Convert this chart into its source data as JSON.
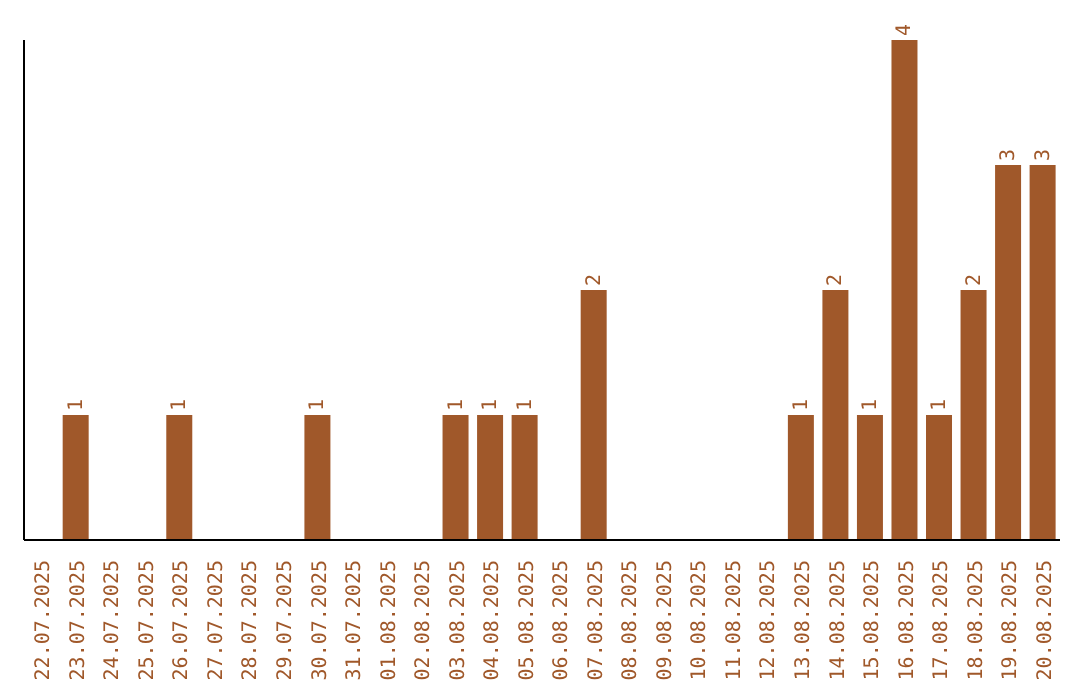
{
  "chart_data": {
    "type": "bar",
    "categories": [
      "22.07.2025",
      "23.07.2025",
      "24.07.2025",
      "25.07.2025",
      "26.07.2025",
      "27.07.2025",
      "28.07.2025",
      "29.07.2025",
      "30.07.2025",
      "31.07.2025",
      "01.08.2025",
      "02.08.2025",
      "03.08.2025",
      "04.08.2025",
      "05.08.2025",
      "06.08.2025",
      "07.08.2025",
      "08.08.2025",
      "09.08.2025",
      "10.08.2025",
      "11.08.2025",
      "12.08.2025",
      "13.08.2025",
      "14.08.2025",
      "15.08.2025",
      "16.08.2025",
      "17.08.2025",
      "18.08.2025",
      "19.08.2025",
      "20.08.2025"
    ],
    "values": [
      0,
      1,
      0,
      0,
      1,
      0,
      0,
      0,
      1,
      0,
      0,
      0,
      1,
      1,
      1,
      0,
      2,
      0,
      0,
      0,
      0,
      0,
      1,
      2,
      1,
      4,
      1,
      2,
      3,
      3
    ],
    "value_labels": [
      null,
      "1",
      null,
      null,
      "1",
      null,
      null,
      null,
      "1",
      null,
      null,
      null,
      "1",
      "1",
      "1",
      null,
      "2",
      null,
      null,
      null,
      null,
      null,
      "1",
      "2",
      "1",
      "4",
      "1",
      "2",
      "3",
      "3"
    ],
    "color": "#a0582a",
    "grid": false,
    "legend": false
  }
}
